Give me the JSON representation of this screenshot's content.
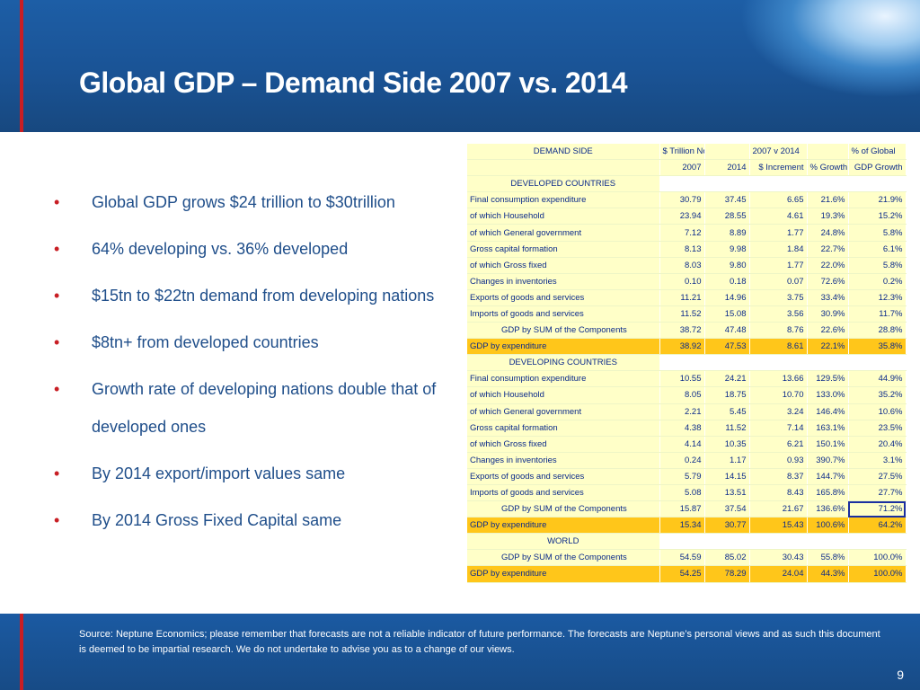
{
  "slide": {
    "title": "Global GDP – Demand Side 2007 vs. 2014",
    "page_number": "9",
    "source": "Source: Neptune Economics; please remember that forecasts are not a reliable indicator of future performance. The forecasts are Neptune’s personal views and as such this document is deemed to be impartial research. We do not undertake to advise you as to a change of our views."
  },
  "bullets": [
    "Global GDP grows $24 trillion to $30trillion",
    "64% developing vs. 36% developed",
    "$15tn to $22tn demand from developing nations",
    "$8tn+ from developed countries",
    "Growth rate of developing nations double that of developed ones",
    "By 2014 export/import values same",
    "By 2014 Gross Fixed Capital same"
  ],
  "bullet_marker": "•",
  "table": {
    "header1": [
      "DEMAND SIDE",
      "$ Trillion Nominal GDP",
      "",
      "2007 v 2014",
      "",
      "% of Global"
    ],
    "header2": [
      "",
      "2007",
      "2014",
      "$ Increment",
      "% Growth",
      "GDP Growth"
    ],
    "sections": [
      {
        "name": "DEVELOPED COUNTRIES",
        "rows": [
          {
            "label": "Final consumption expenditure",
            "v2007": "30.79",
            "v2014": "37.45",
            "inc": "6.65",
            "growth": "21.6%",
            "share": "21.9%"
          },
          {
            "label": "of which Household",
            "v2007": "23.94",
            "v2014": "28.55",
            "inc": "4.61",
            "growth": "19.3%",
            "share": "15.2%"
          },
          {
            "label": "of which General government",
            "v2007": "7.12",
            "v2014": "8.89",
            "inc": "1.77",
            "growth": "24.8%",
            "share": "5.8%"
          },
          {
            "label": "Gross capital formation",
            "v2007": "8.13",
            "v2014": "9.98",
            "inc": "1.84",
            "growth": "22.7%",
            "share": "6.1%"
          },
          {
            "label": "of which Gross fixed",
            "v2007": "8.03",
            "v2014": "9.80",
            "inc": "1.77",
            "growth": "22.0%",
            "share": "5.8%"
          },
          {
            "label": "Changes in inventories",
            "v2007": "0.10",
            "v2014": "0.18",
            "inc": "0.07",
            "growth": "72.6%",
            "share": "0.2%"
          },
          {
            "label": "Exports of goods and services",
            "v2007": "11.21",
            "v2014": "14.96",
            "inc": "3.75",
            "growth": "33.4%",
            "share": "12.3%"
          },
          {
            "label": "Imports of goods and services",
            "v2007": "11.52",
            "v2014": "15.08",
            "inc": "3.56",
            "growth": "30.9%",
            "share": "11.7%"
          },
          {
            "label": "GDP by SUM of the Components",
            "v2007": "38.72",
            "v2014": "47.48",
            "inc": "8.76",
            "growth": "22.6%",
            "share": "28.8%",
            "kind": "sum"
          },
          {
            "label": "GDP by expenditure",
            "v2007": "38.92",
            "v2014": "47.53",
            "inc": "8.61",
            "growth": "22.1%",
            "share": "35.8%",
            "kind": "highlight"
          }
        ]
      },
      {
        "name": "DEVELOPING COUNTRIES",
        "rows": [
          {
            "label": "Final consumption expenditure",
            "v2007": "10.55",
            "v2014": "24.21",
            "inc": "13.66",
            "growth": "129.5%",
            "share": "44.9%"
          },
          {
            "label": "of which Household",
            "v2007": "8.05",
            "v2014": "18.75",
            "inc": "10.70",
            "growth": "133.0%",
            "share": "35.2%"
          },
          {
            "label": "of which General government",
            "v2007": "2.21",
            "v2014": "5.45",
            "inc": "3.24",
            "growth": "146.4%",
            "share": "10.6%"
          },
          {
            "label": "Gross capital formation",
            "v2007": "4.38",
            "v2014": "11.52",
            "inc": "7.14",
            "growth": "163.1%",
            "share": "23.5%"
          },
          {
            "label": "of which Gross fixed",
            "v2007": "4.14",
            "v2014": "10.35",
            "inc": "6.21",
            "growth": "150.1%",
            "share": "20.4%"
          },
          {
            "label": "Changes in inventories",
            "v2007": "0.24",
            "v2014": "1.17",
            "inc": "0.93",
            "growth": "390.7%",
            "share": "3.1%"
          },
          {
            "label": "Exports of goods and services",
            "v2007": "5.79",
            "v2014": "14.15",
            "inc": "8.37",
            "growth": "144.7%",
            "share": "27.5%"
          },
          {
            "label": "Imports of goods and services",
            "v2007": "5.08",
            "v2014": "13.51",
            "inc": "8.43",
            "growth": "165.8%",
            "share": "27.7%"
          },
          {
            "label": "GDP by SUM of the Components",
            "v2007": "15.87",
            "v2014": "37.54",
            "inc": "21.67",
            "growth": "136.6%",
            "share": "71.2%",
            "kind": "sum",
            "selected": true
          },
          {
            "label": "GDP by expenditure",
            "v2007": "15.34",
            "v2014": "30.77",
            "inc": "15.43",
            "growth": "100.6%",
            "share": "64.2%",
            "kind": "highlight"
          }
        ]
      },
      {
        "name": "WORLD",
        "rows": [
          {
            "label": "GDP by SUM of the Components",
            "v2007": "54.59",
            "v2014": "85.02",
            "inc": "30.43",
            "growth": "55.8%",
            "share": "100.0%",
            "kind": "sum"
          },
          {
            "label": "GDP by expenditure",
            "v2007": "54.25",
            "v2014": "78.29",
            "inc": "24.04",
            "growth": "44.3%",
            "share": "100.0%",
            "kind": "highlight",
            "comment": true
          }
        ]
      }
    ]
  },
  "colors": {
    "header_bg": "#1d5ea6",
    "accent_red": "#c81e24",
    "bullet_text": "#1f4e8a",
    "table_bg": "#ffffc8",
    "table_highlight": "#ffc61a",
    "table_text": "#0b2a8a"
  }
}
